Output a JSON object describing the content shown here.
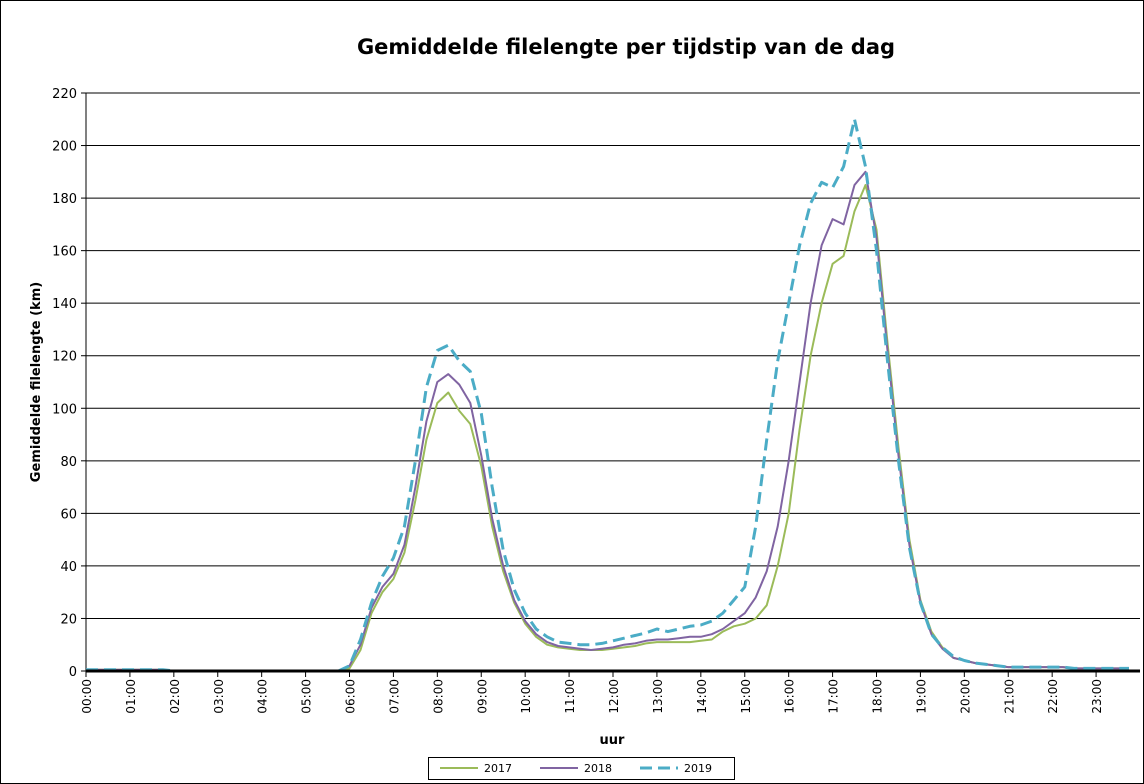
{
  "chart_data": {
    "type": "line",
    "title": "Gemiddelde filelengte per tijdstip van de dag",
    "x_label": "uur",
    "y_label": "Gemiddelde filelengte  (km)",
    "categories": [
      "00:00",
      null,
      null,
      null,
      "01:00",
      null,
      null,
      null,
      "02:00",
      null,
      null,
      null,
      "03:00",
      null,
      null,
      null,
      "04:00",
      null,
      null,
      null,
      "05:00",
      null,
      null,
      null,
      "06:00",
      null,
      null,
      null,
      "07:00",
      null,
      null,
      null,
      "08:00",
      null,
      null,
      null,
      "09:00",
      null,
      null,
      null,
      "10:00",
      null,
      null,
      null,
      "11:00",
      null,
      null,
      null,
      "12:00",
      null,
      null,
      null,
      "13:00",
      null,
      null,
      null,
      "14:00",
      null,
      null,
      null,
      "15:00",
      null,
      null,
      null,
      "16:00",
      null,
      null,
      null,
      "17:00",
      null,
      null,
      null,
      "18:00",
      null,
      null,
      null,
      "19:00",
      null,
      null,
      null,
      "20:00",
      null,
      null,
      null,
      "21:00",
      null,
      null,
      null,
      "22:00",
      null,
      null,
      null,
      "23:00",
      null,
      null,
      null
    ],
    "series": [
      {
        "name": "2017",
        "color": "#9bbb59",
        "dashed": false,
        "values": [
          0.5,
          0.5,
          0.5,
          0.5,
          0.5,
          0.5,
          0.5,
          0.5,
          0,
          0,
          0,
          0,
          0,
          0,
          0,
          0,
          0,
          0,
          0,
          0,
          0,
          0,
          0,
          0,
          1,
          8,
          22,
          30,
          35,
          45,
          65,
          88,
          102,
          106,
          99,
          94,
          78,
          55,
          38,
          26,
          18,
          13,
          10,
          9,
          8.5,
          8,
          8,
          8,
          8.5,
          9,
          9.5,
          10.5,
          11,
          11,
          11,
          11,
          11.5,
          12,
          15,
          17,
          18,
          20,
          25,
          40,
          60,
          92,
          120,
          140,
          155,
          158,
          175,
          185,
          168,
          125,
          85,
          50,
          27,
          15,
          9,
          5,
          4,
          3,
          2.5,
          2,
          1.5,
          1.5,
          1.5,
          1.5,
          1.5,
          1.5,
          1,
          1,
          1,
          1,
          1,
          1
        ]
      },
      {
        "name": "2018",
        "color": "#8064a2",
        "dashed": false,
        "values": [
          0.5,
          0.5,
          0.5,
          0.5,
          0.5,
          0.5,
          0.5,
          0.5,
          0,
          0,
          0,
          0,
          0,
          0,
          0,
          0,
          0,
          0,
          0,
          0,
          0,
          0,
          0,
          0,
          2,
          10,
          24,
          32,
          37,
          48,
          70,
          95,
          110,
          113,
          109,
          102,
          82,
          58,
          40,
          27,
          19,
          14,
          11,
          9.5,
          9,
          8.5,
          8,
          8.5,
          9,
          10,
          10.5,
          11.5,
          12,
          12,
          12.5,
          13,
          13,
          14,
          16,
          19,
          22,
          28,
          38,
          55,
          80,
          110,
          140,
          162,
          172,
          170,
          185,
          190,
          165,
          122,
          82,
          48,
          26,
          14,
          8.5,
          5,
          4,
          3,
          2.5,
          2,
          1.5,
          1.5,
          1.5,
          1.5,
          1.5,
          1.5,
          1,
          1,
          1,
          1,
          1,
          1
        ]
      },
      {
        "name": "2019",
        "color": "#4bacc6",
        "dashed": true,
        "values": [
          0.5,
          0.5,
          0.5,
          0.5,
          0.5,
          0.5,
          0.5,
          0.5,
          0,
          0,
          0,
          0,
          0,
          0,
          0,
          0,
          0,
          0,
          0,
          0,
          0,
          0,
          0,
          0,
          2,
          12,
          26,
          36,
          43,
          55,
          80,
          108,
          122,
          124,
          118,
          114,
          98,
          70,
          46,
          31,
          22,
          16,
          13,
          11,
          10.5,
          10,
          10,
          10.5,
          11.5,
          12.5,
          13.5,
          14.5,
          16,
          15,
          16,
          17,
          17.5,
          19,
          22,
          27,
          32,
          55,
          88,
          118,
          140,
          162,
          178,
          186,
          184,
          192,
          210,
          192,
          160,
          118,
          80,
          47,
          26,
          14,
          9,
          5.5,
          4,
          3,
          2.5,
          2,
          1.5,
          1.5,
          1.5,
          1.5,
          1.5,
          1.5,
          1,
          1,
          1,
          1,
          1,
          1
        ]
      }
    ],
    "ylim": [
      0,
      220
    ],
    "yticks": [
      0,
      20,
      40,
      60,
      80,
      100,
      120,
      140,
      160,
      180,
      200,
      220
    ],
    "grid": true,
    "legend": "bottom"
  }
}
